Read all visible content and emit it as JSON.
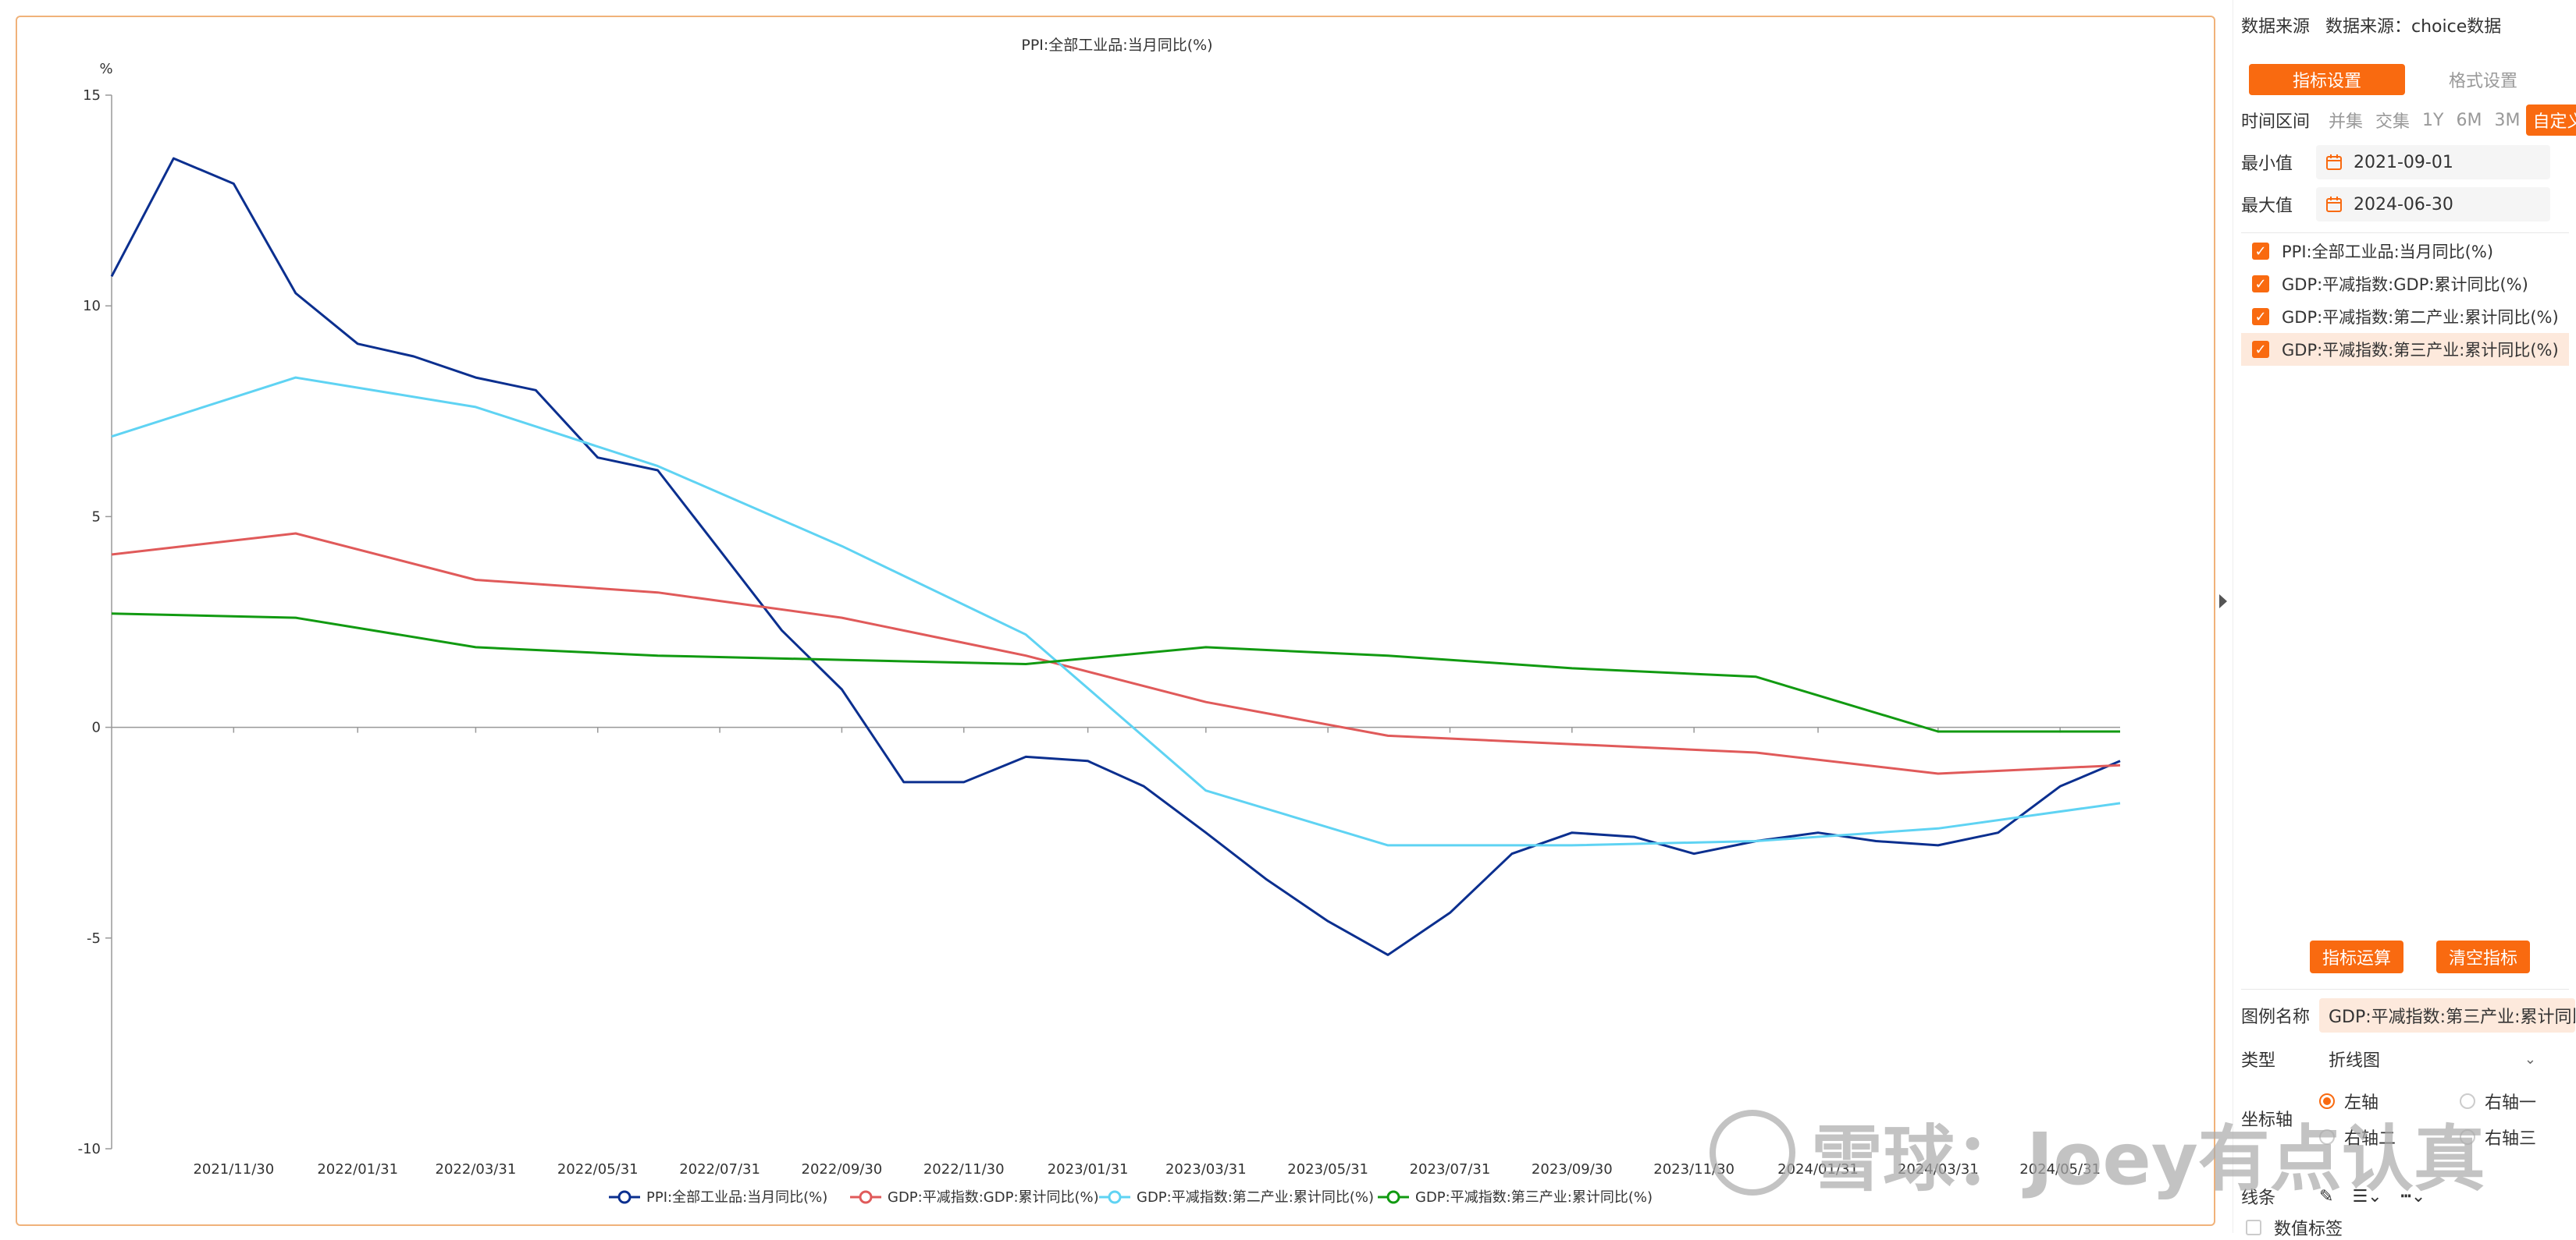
{
  "chart_data": {
    "type": "line",
    "title": "PPI:全部工业品:当月同比(%)",
    "ylabel": "%",
    "ylim": [
      -10,
      15
    ],
    "yticks": [
      15,
      10,
      5,
      0,
      -5,
      -10
    ],
    "xlim": [
      "2021-09-30",
      "2024-06-30"
    ],
    "xticks": [
      "2021/11/30",
      "2022/01/31",
      "2022/03/31",
      "2022/05/31",
      "2022/07/31",
      "2022/09/30",
      "2022/11/30",
      "2023/01/31",
      "2023/03/31",
      "2023/05/31",
      "2023/07/31",
      "2023/09/30",
      "2023/11/30",
      "2024/01/31",
      "2024/03/31",
      "2024/05/31"
    ],
    "legend_position": "bottom",
    "grid": false,
    "series": [
      {
        "name": "PPI:全部工业品:当月同比(%)",
        "color": "#0b2f8f",
        "x": [
          "2021-09-30",
          "2021-10-31",
          "2021-11-30",
          "2021-12-31",
          "2022-01-31",
          "2022-02-28",
          "2022-03-31",
          "2022-04-30",
          "2022-05-31",
          "2022-06-30",
          "2022-07-31",
          "2022-08-31",
          "2022-09-30",
          "2022-10-31",
          "2022-11-30",
          "2022-12-31",
          "2023-01-31",
          "2023-02-28",
          "2023-03-31",
          "2023-04-30",
          "2023-05-31",
          "2023-06-30",
          "2023-07-31",
          "2023-08-31",
          "2023-09-30",
          "2023-10-31",
          "2023-11-30",
          "2023-12-31",
          "2024-01-31",
          "2024-02-29",
          "2024-03-31",
          "2024-04-30",
          "2024-05-31",
          "2024-06-30"
        ],
        "y": [
          10.7,
          13.5,
          12.9,
          10.3,
          9.1,
          8.8,
          8.3,
          8.0,
          6.4,
          6.1,
          4.2,
          2.3,
          0.9,
          -1.3,
          -1.3,
          -0.7,
          -0.8,
          -1.4,
          -2.5,
          -3.6,
          -4.6,
          -5.4,
          -4.4,
          -3.0,
          -2.5,
          -2.6,
          -3.0,
          -2.7,
          -2.5,
          -2.7,
          -2.8,
          -2.5,
          -1.4,
          -0.8
        ]
      },
      {
        "name": "GDP:平减指数:GDP:累计同比(%)",
        "color": "#e05a5a",
        "x": [
          "2021-09-30",
          "2021-12-31",
          "2022-03-31",
          "2022-06-30",
          "2022-09-30",
          "2022-12-31",
          "2023-03-31",
          "2023-06-30",
          "2023-09-30",
          "2023-12-31",
          "2024-03-31",
          "2024-06-30"
        ],
        "y": [
          4.1,
          4.6,
          3.5,
          3.2,
          2.6,
          1.7,
          0.6,
          -0.2,
          -0.4,
          -0.6,
          -1.1,
          -0.9
        ]
      },
      {
        "name": "GDP:平减指数:第二产业:累计同比(%)",
        "color": "#5fd3f3",
        "x": [
          "2021-09-30",
          "2021-12-31",
          "2022-03-31",
          "2022-06-30",
          "2022-09-30",
          "2022-12-31",
          "2023-03-31",
          "2023-06-30",
          "2023-09-30",
          "2023-12-31",
          "2024-03-31",
          "2024-06-30"
        ],
        "y": [
          6.9,
          8.3,
          7.6,
          6.2,
          4.3,
          2.2,
          -1.5,
          -2.8,
          -2.8,
          -2.7,
          -2.4,
          -1.8
        ]
      },
      {
        "name": "GDP:平减指数:第三产业:累计同比(%)",
        "color": "#119a11",
        "x": [
          "2021-09-30",
          "2021-12-31",
          "2022-03-31",
          "2022-06-30",
          "2022-09-30",
          "2022-12-31",
          "2023-03-31",
          "2023-06-30",
          "2023-09-30",
          "2023-12-31",
          "2024-03-31",
          "2024-06-30"
        ],
        "y": [
          2.7,
          2.6,
          1.9,
          1.7,
          1.6,
          1.5,
          1.9,
          1.7,
          1.4,
          1.2,
          -0.1,
          -0.1
        ]
      }
    ]
  },
  "panel": {
    "source_label": "数据来源",
    "source_value": "数据来源：choice数据",
    "tab_indicator": "指标设置",
    "tab_format": "格式设置",
    "range_label": "时间区间",
    "range_options": [
      "并集",
      "交集",
      "1Y",
      "6M",
      "3M",
      "自定义"
    ],
    "range_selected": "自定义",
    "min_label": "最小值",
    "min_value": "2021-09-01",
    "max_label": "最大值",
    "max_value": "2024-06-30",
    "indicators": [
      "PPI:全部工业品:当月同比(%)",
      "GDP:平减指数:GDP:累计同比(%)",
      "GDP:平减指数:第二产业:累计同比(%)",
      "GDP:平减指数:第三产业:累计同比(%)"
    ],
    "calc_button": "指标运算",
    "clear_button": "清空指标",
    "legend_name_label": "图例名称",
    "legend_name_value": "GDP:平减指数:第三产业:累计同比(%)",
    "type_label": "类型",
    "type_value": "折线图",
    "axis_label": "坐标轴",
    "axis_options": [
      "左轴",
      "右轴一",
      "右轴二",
      "右轴三"
    ],
    "line_label": "线条",
    "data_label_label": "数值标签"
  },
  "watermark": {
    "text": "雪球：Joey有点认真"
  }
}
